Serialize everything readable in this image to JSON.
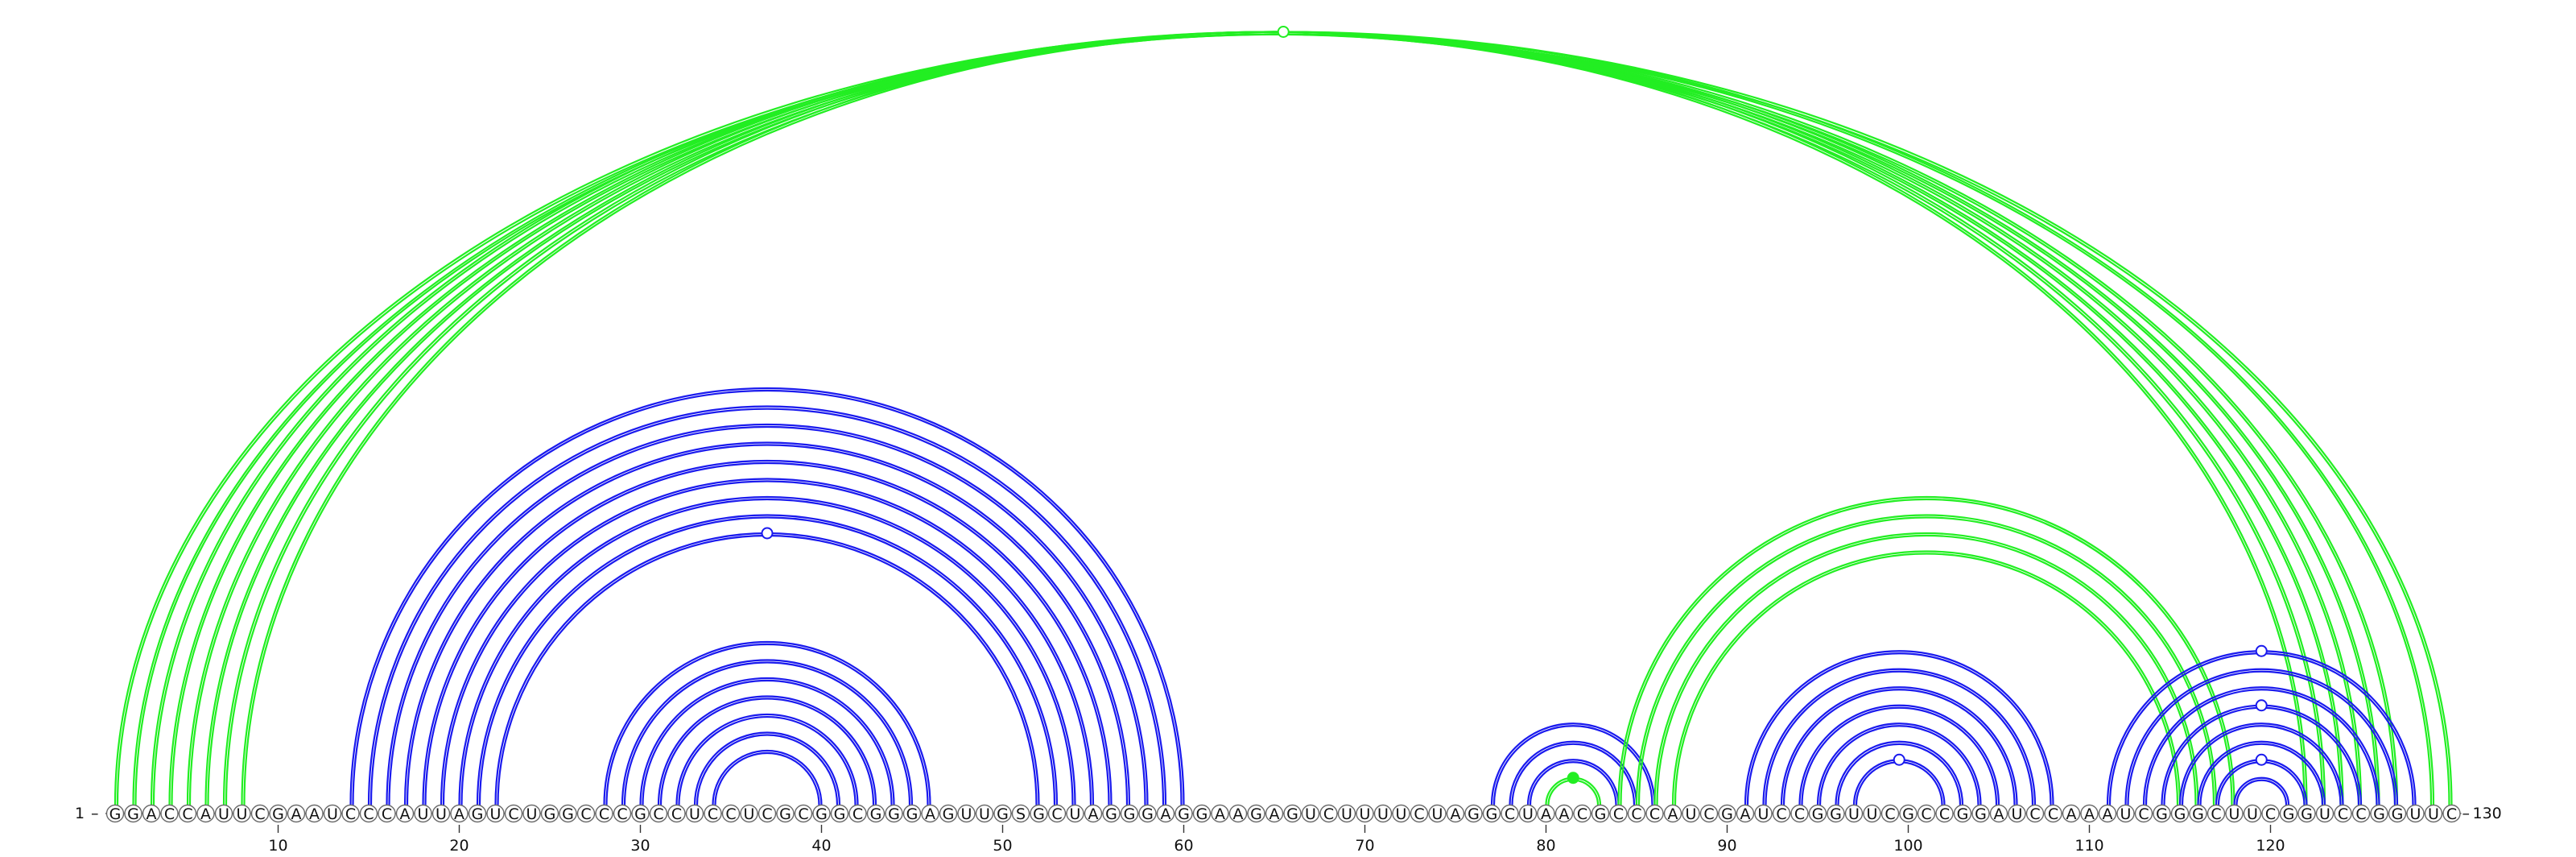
{
  "sequence": "GGACCAUUCGAAUCCCAUUAGUCUGGCCCGCCUCCUCGCGGCGGGAGUUGSGCUAGGGAGGAAGAGUCUUUUCUAGGCUAACGCCCAUCGAUCCGGUUCGCCGGAUCCAAAUCGGGCUUCGGUCCGGUUC",
  "length": 130,
  "start_label": "1",
  "end_label": "130",
  "ticks": [
    {
      "pos": 10,
      "label": "10"
    },
    {
      "pos": 20,
      "label": "20"
    },
    {
      "pos": 30,
      "label": "30"
    },
    {
      "pos": 40,
      "label": "40"
    },
    {
      "pos": 50,
      "label": "50"
    },
    {
      "pos": 60,
      "label": "60"
    },
    {
      "pos": 70,
      "label": "70"
    },
    {
      "pos": 80,
      "label": "80"
    },
    {
      "pos": 90,
      "label": "90"
    },
    {
      "pos": 100,
      "label": "100"
    },
    {
      "pos": 110,
      "label": "110"
    },
    {
      "pos": 120,
      "label": "120"
    },
    {
      "pos": 130,
      "label": "130"
    }
  ],
  "colors": {
    "blue": "#1a1aee",
    "green": "#22ee22"
  },
  "arcs": [
    {
      "i": 1,
      "j": 130,
      "color": "green"
    },
    {
      "i": 2,
      "j": 129,
      "color": "green"
    },
    {
      "i": 3,
      "j": 127,
      "color": "green"
    },
    {
      "i": 4,
      "j": 126,
      "color": "green"
    },
    {
      "i": 5,
      "j": 125,
      "color": "green"
    },
    {
      "i": 6,
      "j": 124,
      "color": "green"
    },
    {
      "i": 7,
      "j": 123,
      "color": "green"
    },
    {
      "i": 8,
      "j": 122,
      "color": "green"
    },
    {
      "i": 14,
      "j": 60,
      "color": "blue"
    },
    {
      "i": 15,
      "j": 59,
      "color": "blue"
    },
    {
      "i": 16,
      "j": 58,
      "color": "blue"
    },
    {
      "i": 17,
      "j": 57,
      "color": "blue"
    },
    {
      "i": 18,
      "j": 56,
      "color": "blue"
    },
    {
      "i": 19,
      "j": 55,
      "color": "blue"
    },
    {
      "i": 20,
      "j": 54,
      "color": "blue"
    },
    {
      "i": 21,
      "j": 53,
      "color": "blue"
    },
    {
      "i": 22,
      "j": 52,
      "color": "blue"
    },
    {
      "i": 28,
      "j": 46,
      "color": "blue"
    },
    {
      "i": 29,
      "j": 45,
      "color": "blue"
    },
    {
      "i": 30,
      "j": 44,
      "color": "blue"
    },
    {
      "i": 31,
      "j": 43,
      "color": "blue"
    },
    {
      "i": 32,
      "j": 42,
      "color": "blue"
    },
    {
      "i": 33,
      "j": 41,
      "color": "blue"
    },
    {
      "i": 34,
      "j": 40,
      "color": "blue"
    },
    {
      "i": 77,
      "j": 86,
      "color": "blue"
    },
    {
      "i": 78,
      "j": 85,
      "color": "blue"
    },
    {
      "i": 79,
      "j": 84,
      "color": "blue"
    },
    {
      "i": 80,
      "j": 83,
      "color": "green"
    },
    {
      "i": 84,
      "j": 118,
      "color": "green"
    },
    {
      "i": 85,
      "j": 117,
      "color": "green"
    },
    {
      "i": 86,
      "j": 116,
      "color": "green"
    },
    {
      "i": 87,
      "j": 115,
      "color": "green"
    },
    {
      "i": 91,
      "j": 108,
      "color": "blue"
    },
    {
      "i": 92,
      "j": 107,
      "color": "blue"
    },
    {
      "i": 93,
      "j": 106,
      "color": "blue"
    },
    {
      "i": 94,
      "j": 105,
      "color": "blue"
    },
    {
      "i": 95,
      "j": 104,
      "color": "blue"
    },
    {
      "i": 96,
      "j": 103,
      "color": "blue"
    },
    {
      "i": 97,
      "j": 102,
      "color": "blue"
    },
    {
      "i": 111,
      "j": 128,
      "color": "blue"
    },
    {
      "i": 112,
      "j": 127,
      "color": "blue"
    },
    {
      "i": 113,
      "j": 126,
      "color": "blue"
    },
    {
      "i": 114,
      "j": 125,
      "color": "blue"
    },
    {
      "i": 115,
      "j": 124,
      "color": "blue"
    },
    {
      "i": 116,
      "j": 123,
      "color": "blue"
    },
    {
      "i": 117,
      "j": 122,
      "color": "blue"
    },
    {
      "i": 118,
      "j": 121,
      "color": "blue"
    }
  ],
  "markers": [
    {
      "a": 1,
      "b": 130,
      "color": "green",
      "filled": false
    },
    {
      "a": 22,
      "b": 52,
      "color": "blue",
      "filled": false
    },
    {
      "a": 80,
      "b": 83,
      "color": "green",
      "filled": true
    },
    {
      "a": 97,
      "b": 102,
      "color": "blue",
      "filled": false
    },
    {
      "a": 111,
      "b": 128,
      "color": "blue",
      "filled": false
    },
    {
      "a": 114,
      "b": 125,
      "color": "blue",
      "filled": false
    },
    {
      "a": 117,
      "b": 122,
      "color": "blue",
      "filled": false
    }
  ]
}
